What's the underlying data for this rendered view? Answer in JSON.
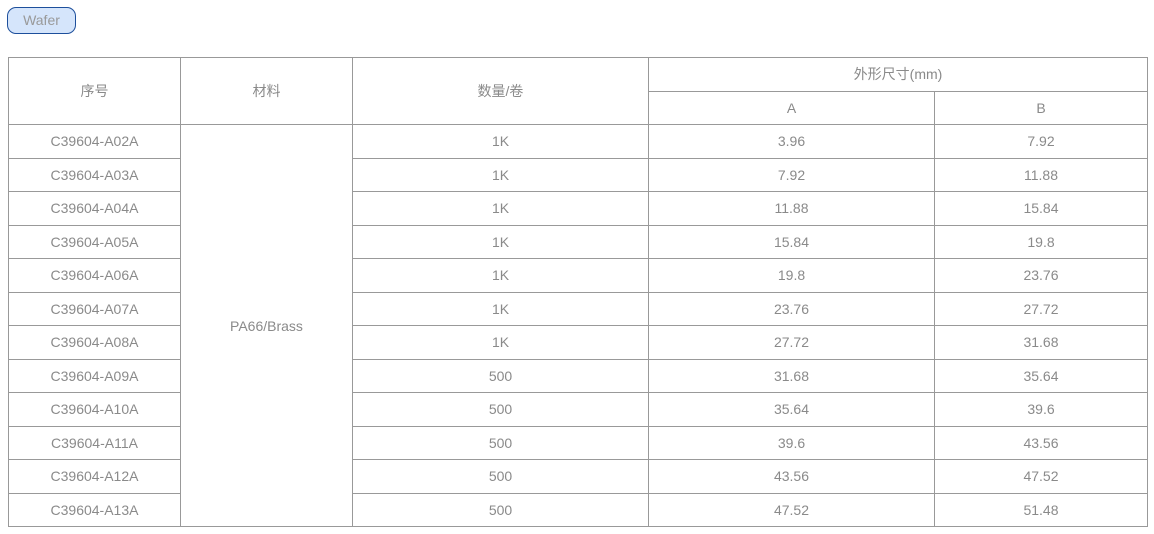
{
  "tag": "Wafer",
  "headers": {
    "id": "序号",
    "material": "材料",
    "qty": "数量/卷",
    "dims": "外形尺寸(mm)",
    "a": "A",
    "b": "B"
  },
  "material": "PA66/Brass",
  "rows": [
    [
      "C39604-A02A",
      "1K",
      "3.96",
      "7.92"
    ],
    [
      "C39604-A03A",
      "1K",
      "7.92",
      "11.88"
    ],
    [
      "C39604-A04A",
      "1K",
      "11.88",
      "15.84"
    ],
    [
      "C39604-A05A",
      "1K",
      "15.84",
      "19.8"
    ],
    [
      "C39604-A06A",
      "1K",
      "19.8",
      "23.76"
    ],
    [
      "C39604-A07A",
      "1K",
      "23.76",
      "27.72"
    ],
    [
      "C39604-A08A",
      "1K",
      "27.72",
      "31.68"
    ],
    [
      "C39604-A09A",
      "500",
      "31.68",
      "35.64"
    ],
    [
      "C39604-A10A",
      "500",
      "35.64",
      "39.6"
    ],
    [
      "C39604-A11A",
      "500",
      "39.6",
      "43.56"
    ],
    [
      "C39604-A12A",
      "500",
      "43.56",
      "47.52"
    ],
    [
      "C39604-A13A",
      "500",
      "47.52",
      "51.48"
    ]
  ]
}
